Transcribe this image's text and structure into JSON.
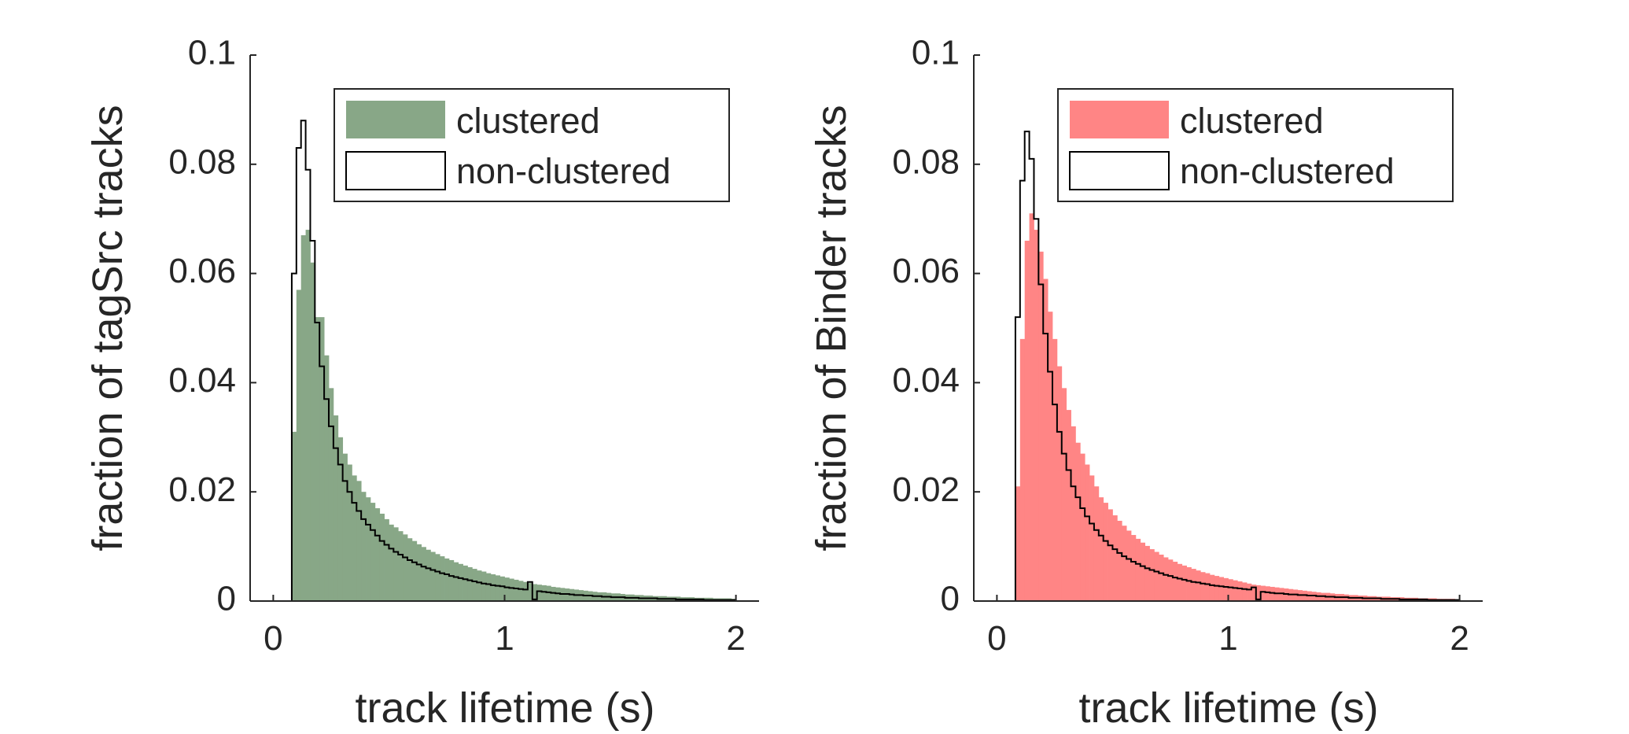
{
  "chart_data": [
    {
      "type": "histogram",
      "xlabel": "track lifetime (s)",
      "ylabel": "fraction of tagSrc tracks",
      "xlim": [
        -0.1,
        2.1
      ],
      "ylim": [
        0,
        0.1
      ],
      "x_ticks": [
        "0",
        "1",
        "2"
      ],
      "y_ticks": [
        "0",
        "0.02",
        "0.04",
        "0.06",
        "0.08",
        "0.1"
      ],
      "legend_position": "top-right",
      "grid": false,
      "bin_start": 0.08,
      "bin_width": 0.02,
      "series": [
        {
          "name": "clustered",
          "style": "filled",
          "color": "#88a787",
          "values": [
            0.031,
            0.057,
            0.067,
            0.068,
            0.062,
            0.052,
            0.052,
            0.045,
            0.039,
            0.034,
            0.03,
            0.027,
            0.025,
            0.023,
            0.022,
            0.02,
            0.019,
            0.018,
            0.017,
            0.016,
            0.015,
            0.014,
            0.0135,
            0.0128,
            0.0122,
            0.0115,
            0.011,
            0.0104,
            0.0099,
            0.0094,
            0.009,
            0.0086,
            0.0082,
            0.0078,
            0.0075,
            0.0071,
            0.0068,
            0.0065,
            0.0062,
            0.0059,
            0.0056,
            0.0054,
            0.0051,
            0.0049,
            0.0047,
            0.0045,
            0.0043,
            0.0041,
            0.0039,
            0.0037,
            0.0035,
            0.0033,
            0.0031,
            0.003,
            0.0029,
            0.0028,
            0.0026,
            0.0025,
            0.0024,
            0.0023,
            0.0022,
            0.0021,
            0.002,
            0.0019,
            0.0018,
            0.0017,
            0.0016,
            0.0016,
            0.0015,
            0.0014,
            0.0014,
            0.0013,
            0.0012,
            0.0012,
            0.0011,
            0.0011,
            0.001,
            0.001,
            0.0009,
            0.0009,
            0.0009,
            0.0008,
            0.0008,
            0.0008,
            0.0007,
            0.0007,
            0.0007,
            0.0006,
            0.0006,
            0.0006,
            0.0006,
            0.0005,
            0.0005,
            0.0005,
            0.0005,
            0.0004
          ]
        },
        {
          "name": "non-clustered",
          "style": "outline",
          "color": "#000000",
          "values": [
            0.06,
            0.083,
            0.088,
            0.079,
            0.066,
            0.051,
            0.043,
            0.037,
            0.032,
            0.028,
            0.025,
            0.022,
            0.02,
            0.018,
            0.0165,
            0.015,
            0.014,
            0.013,
            0.012,
            0.011,
            0.0103,
            0.0096,
            0.009,
            0.0085,
            0.008,
            0.0075,
            0.0071,
            0.0067,
            0.0063,
            0.006,
            0.0057,
            0.0054,
            0.0051,
            0.0049,
            0.0046,
            0.0044,
            0.0042,
            0.004,
            0.0038,
            0.0036,
            0.0034,
            0.0032,
            0.0031,
            0.0029,
            0.0028,
            0.0027,
            0.0025,
            0.0024,
            0.0023,
            0.0022,
            0.0021,
            0.0035,
            0.0003,
            0.0018,
            0.0017,
            0.0016,
            0.0015,
            0.0014,
            0.0013,
            0.0013,
            0.0012,
            0.0011,
            0.0011,
            0.001,
            0.001,
            0.0009,
            0.0009,
            0.0008,
            0.0008,
            0.0007,
            0.0007,
            0.0007,
            0.0006,
            0.0006,
            0.0006,
            0.0005,
            0.0005,
            0.0005,
            0.0005,
            0.0004,
            0.0004,
            0.0004,
            0.0004,
            0.0003,
            0.0003,
            0.0003,
            0.0003,
            0.0003,
            0.0003,
            0.0002,
            0.0002,
            0.0002,
            0.0002,
            0.0002,
            0.0002,
            0.0002
          ]
        }
      ]
    },
    {
      "type": "histogram",
      "xlabel": "track lifetime (s)",
      "ylabel": "fraction of Binder tracks",
      "xlim": [
        -0.1,
        2.1
      ],
      "ylim": [
        0,
        0.1
      ],
      "x_ticks": [
        "0",
        "1",
        "2"
      ],
      "y_ticks": [
        "0",
        "0.02",
        "0.04",
        "0.06",
        "0.08",
        "0.1"
      ],
      "legend_position": "top-right",
      "grid": false,
      "bin_start": 0.08,
      "bin_width": 0.02,
      "series": [
        {
          "name": "clustered",
          "style": "filled",
          "color": "#ff8585",
          "values": [
            0.021,
            0.048,
            0.066,
            0.071,
            0.068,
            0.064,
            0.059,
            0.053,
            0.048,
            0.043,
            0.039,
            0.035,
            0.032,
            0.029,
            0.027,
            0.025,
            0.023,
            0.021,
            0.019,
            0.018,
            0.0168,
            0.0157,
            0.0147,
            0.0138,
            0.0129,
            0.0121,
            0.0114,
            0.0107,
            0.0101,
            0.0095,
            0.009,
            0.0085,
            0.008,
            0.0076,
            0.0072,
            0.0068,
            0.0065,
            0.0062,
            0.0059,
            0.0056,
            0.0053,
            0.0051,
            0.0048,
            0.0046,
            0.0044,
            0.0042,
            0.004,
            0.0038,
            0.0036,
            0.0034,
            0.0032,
            0.003,
            0.0029,
            0.0028,
            0.0027,
            0.0026,
            0.0025,
            0.0024,
            0.0023,
            0.0022,
            0.0021,
            0.002,
            0.0019,
            0.0018,
            0.0017,
            0.0016,
            0.0015,
            0.0015,
            0.0014,
            0.0013,
            0.0013,
            0.0012,
            0.0011,
            0.0011,
            0.001,
            0.001,
            0.0009,
            0.0009,
            0.0008,
            0.0008,
            0.0008,
            0.0007,
            0.0007,
            0.0007,
            0.0006,
            0.0006,
            0.0006,
            0.0005,
            0.0005,
            0.0005,
            0.0005,
            0.0004,
            0.0004,
            0.0004,
            0.0004,
            0.0003
          ]
        },
        {
          "name": "non-clustered",
          "style": "outline",
          "color": "#000000",
          "values": [
            0.052,
            0.077,
            0.086,
            0.081,
            0.07,
            0.058,
            0.049,
            0.042,
            0.036,
            0.031,
            0.027,
            0.024,
            0.021,
            0.019,
            0.017,
            0.0155,
            0.0142,
            0.013,
            0.012,
            0.011,
            0.0102,
            0.0095,
            0.0088,
            0.0082,
            0.0077,
            0.0072,
            0.0068,
            0.0064,
            0.006,
            0.0057,
            0.0054,
            0.0051,
            0.0048,
            0.0046,
            0.0043,
            0.0041,
            0.0039,
            0.0037,
            0.0035,
            0.0034,
            0.0032,
            0.0031,
            0.0029,
            0.0028,
            0.0027,
            0.0026,
            0.0025,
            0.0024,
            0.0023,
            0.0022,
            0.0021,
            0.0025,
            0.0003,
            0.0017,
            0.0016,
            0.0015,
            0.0014,
            0.0014,
            0.0013,
            0.0012,
            0.0012,
            0.0011,
            0.0011,
            0.001,
            0.001,
            0.0009,
            0.0009,
            0.0008,
            0.0008,
            0.0007,
            0.0007,
            0.0007,
            0.0006,
            0.0006,
            0.0006,
            0.0005,
            0.0005,
            0.0005,
            0.0005,
            0.0004,
            0.0004,
            0.0004,
            0.0004,
            0.0003,
            0.0003,
            0.0003,
            0.0003,
            0.0003,
            0.0003,
            0.0002,
            0.0002,
            0.0002,
            0.0002,
            0.0002,
            0.0002,
            0.0002
          ]
        }
      ]
    }
  ]
}
